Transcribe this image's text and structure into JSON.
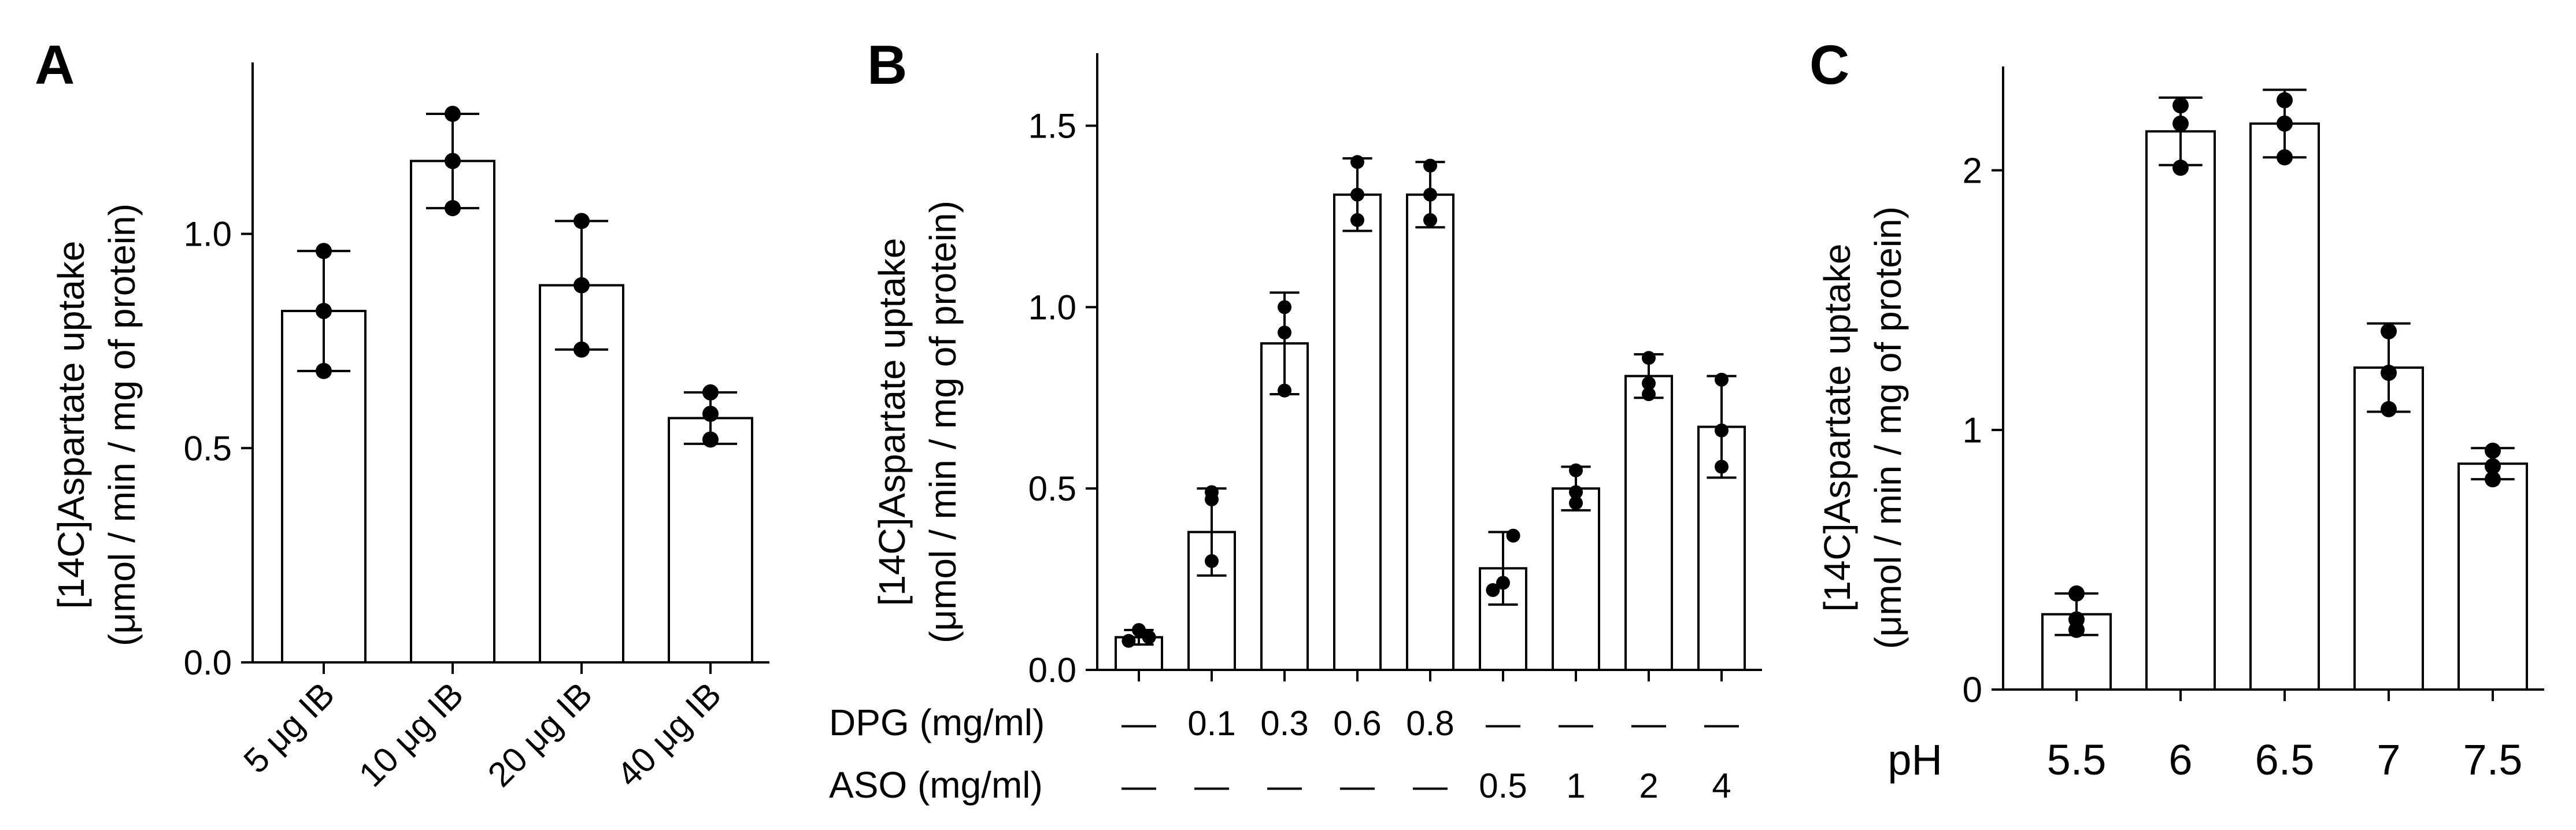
{
  "figure": {
    "background": "#ffffff",
    "ink": "#000000",
    "bar_fill": "#ffffff"
  },
  "chart_data": [
    {
      "type": "bar",
      "panel_label": "A",
      "title": "",
      "ylabel_line1": "[14C]Aspartate uptake",
      "ylabel_line2": "(μmol / min / mg of protein)",
      "ylim": [
        0,
        1.4
      ],
      "yticks": [
        0,
        0.5,
        1.0
      ],
      "ytick_labels": [
        "0.0",
        "0.5",
        "1.0"
      ],
      "categories": [
        "5 μg IB",
        "10 μg IB",
        "20 μg IB",
        "40 μg IB"
      ],
      "values": [
        0.82,
        1.17,
        0.88,
        0.57
      ],
      "errors": [
        0.14,
        0.11,
        0.15,
        0.06
      ],
      "points": [
        [
          0.68,
          0.82,
          0.96
        ],
        [
          1.06,
          1.17,
          1.28
        ],
        [
          0.73,
          0.88,
          1.03
        ],
        [
          0.52,
          0.58,
          0.63
        ]
      ]
    },
    {
      "type": "bar",
      "panel_label": "B",
      "title": "",
      "ylabel_line1": "[14C]Aspartate uptake",
      "ylabel_line2": "(μmol / min / mg of protein)",
      "ylim": [
        0,
        1.7
      ],
      "yticks": [
        0,
        0.5,
        1.0,
        1.5
      ],
      "ytick_labels": [
        "0.0",
        "0.5",
        "1.0",
        "1.5"
      ],
      "row_labels": [
        "DPG (mg/ml)",
        "ASO (mg/ml)"
      ],
      "row_values": [
        [
          "—",
          "0.1",
          "0.3",
          "0.6",
          "0.8",
          "—",
          "—",
          "—",
          "—"
        ],
        [
          "—",
          "—",
          "—",
          "—",
          "—",
          "0.5",
          "1",
          "2",
          "4"
        ]
      ],
      "values": [
        0.09,
        0.38,
        0.9,
        1.31,
        1.31,
        0.28,
        0.5,
        0.81,
        0.67
      ],
      "errors": [
        0.02,
        0.12,
        0.14,
        0.1,
        0.09,
        0.1,
        0.06,
        0.06,
        0.14
      ],
      "points": [
        [
          0.08,
          0.11,
          0.09
        ],
        [
          0.3,
          0.47,
          0.49
        ],
        [
          0.77,
          0.93,
          1.0
        ],
        [
          1.24,
          1.31,
          1.4
        ],
        [
          1.24,
          1.31,
          1.39
        ],
        [
          0.22,
          0.24,
          0.37
        ],
        [
          0.46,
          0.49,
          0.55
        ],
        [
          0.76,
          0.79,
          0.86
        ],
        [
          0.56,
          0.66,
          0.8
        ]
      ]
    },
    {
      "type": "bar",
      "panel_label": "C",
      "title": "",
      "ylabel_line1": "[14C]Aspartate uptake",
      "ylabel_line2": "(μmol / min / mg of protein)",
      "xlabel": "pH",
      "ylim": [
        0,
        2.4
      ],
      "yticks": [
        0,
        1,
        2
      ],
      "ytick_labels": [
        "0",
        "1",
        "2"
      ],
      "categories": [
        "5.5",
        "6",
        "6.5",
        "7",
        "7.5"
      ],
      "values": [
        0.29,
        2.15,
        2.18,
        1.24,
        0.87
      ],
      "errors": [
        0.08,
        0.13,
        0.13,
        0.17,
        0.06
      ],
      "points": [
        [
          0.23,
          0.27,
          0.37
        ],
        [
          2.01,
          2.18,
          2.25
        ],
        [
          2.05,
          2.18,
          2.27
        ],
        [
          1.08,
          1.22,
          1.38
        ],
        [
          0.81,
          0.86,
          0.92
        ]
      ]
    }
  ]
}
